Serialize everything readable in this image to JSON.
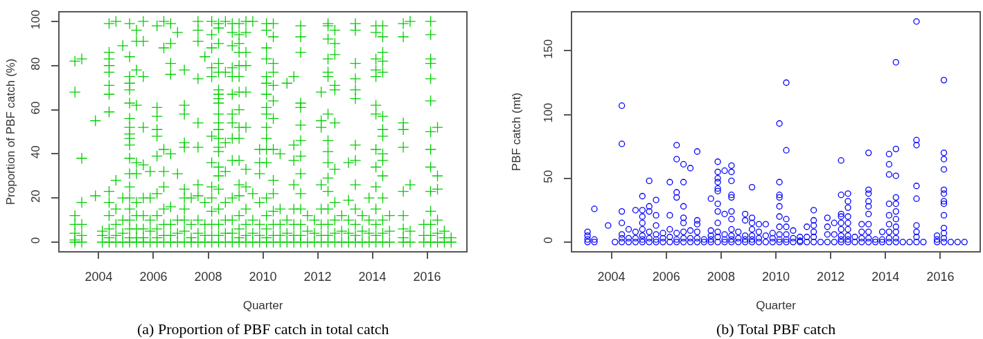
{
  "chart_data": [
    {
      "type": "scatter",
      "xlabel": "Quarter",
      "ylabel": "Proportion of PBF catch (%)",
      "annotations": [
        "(a) Proportion of PBF catch in total catch"
      ],
      "xlim": [
        2002.57,
        2017.43
      ],
      "xticks": [
        2004,
        2006,
        2008,
        2010,
        2012,
        2014,
        2016
      ],
      "ylim": [
        -4,
        104
      ],
      "yticks": [
        0,
        20,
        40,
        60,
        80,
        100
      ],
      "marker": "cross",
      "series": [
        {
          "color": "#00cd00",
          "x": [
            2003.13,
            2003.13,
            2003.13,
            2003.13,
            2003.13,
            2003.13,
            2003.13,
            2003.38,
            2003.38,
            2003.38,
            2003.38,
            2003.38,
            2003.38,
            2003.88,
            2003.88,
            2004.13,
            2004.13,
            2004.13,
            2004.38,
            2004.38,
            2004.38,
            2004.38,
            2004.38,
            2004.38,
            2004.38,
            2004.38,
            2004.38,
            2004.38,
            2004.38,
            2004.38,
            2004.38,
            2004.38,
            2004.63,
            2004.63,
            2004.63,
            2004.63,
            2004.63,
            2004.63,
            2004.88,
            2004.88,
            2004.88,
            2004.88,
            2004.88,
            2005.13,
            2005.13,
            2005.13,
            2005.13,
            2005.13,
            2005.13,
            2005.13,
            2005.13,
            2005.13,
            2005.13,
            2005.13,
            2005.13,
            2005.13,
            2005.13,
            2005.13,
            2005.13,
            2005.13,
            2005.13,
            2005.13,
            2005.13,
            2005.38,
            2005.38,
            2005.38,
            2005.38,
            2005.38,
            2005.38,
            2005.38,
            2005.38,
            2005.38,
            2005.38,
            2005.38,
            2005.63,
            2005.63,
            2005.63,
            2005.63,
            2005.63,
            2005.63,
            2005.63,
            2005.63,
            2005.63,
            2005.63,
            2005.88,
            2005.88,
            2005.88,
            2005.88,
            2005.88,
            2006.13,
            2006.13,
            2006.13,
            2006.13,
            2006.13,
            2006.13,
            2006.13,
            2006.13,
            2006.13,
            2006.13,
            2006.13,
            2006.38,
            2006.38,
            2006.38,
            2006.38,
            2006.38,
            2006.38,
            2006.38,
            2006.38,
            2006.38,
            2006.63,
            2006.63,
            2006.63,
            2006.63,
            2006.63,
            2006.63,
            2006.63,
            2006.63,
            2006.63,
            2006.88,
            2006.88,
            2006.88,
            2006.88,
            2006.88,
            2007.13,
            2007.13,
            2007.13,
            2007.13,
            2007.13,
            2007.13,
            2007.13,
            2007.13,
            2007.13,
            2007.13,
            2007.13,
            2007.38,
            2007.38,
            2007.38,
            2007.38,
            2007.63,
            2007.63,
            2007.63,
            2007.63,
            2007.63,
            2007.63,
            2007.63,
            2007.63,
            2007.63,
            2007.63,
            2007.63,
            2007.88,
            2007.88,
            2007.88,
            2007.88,
            2007.88,
            2008.13,
            2008.13,
            2008.13,
            2008.13,
            2008.13,
            2008.13,
            2008.13,
            2008.13,
            2008.13,
            2008.13,
            2008.13,
            2008.13,
            2008.13,
            2008.38,
            2008.38,
            2008.38,
            2008.38,
            2008.38,
            2008.38,
            2008.38,
            2008.38,
            2008.38,
            2008.38,
            2008.38,
            2008.38,
            2008.38,
            2008.38,
            2008.38,
            2008.38,
            2008.38,
            2008.38,
            2008.38,
            2008.38,
            2008.38,
            2008.38,
            2008.63,
            2008.63,
            2008.63,
            2008.63,
            2008.63,
            2008.63,
            2008.63,
            2008.63,
            2008.88,
            2008.88,
            2008.88,
            2008.88,
            2008.88,
            2008.88,
            2008.88,
            2008.88,
            2008.88,
            2008.88,
            2008.88,
            2008.88,
            2008.88,
            2008.88,
            2009.13,
            2009.13,
            2009.13,
            2009.13,
            2009.13,
            2009.13,
            2009.13,
            2009.13,
            2009.13,
            2009.13,
            2009.13,
            2009.13,
            2009.13,
            2009.13,
            2009.13,
            2009.13,
            2009.13,
            2009.38,
            2009.38,
            2009.38,
            2009.38,
            2009.38,
            2009.38,
            2009.38,
            2009.38,
            2009.38,
            2009.38,
            2009.38,
            2009.38,
            2009.63,
            2009.63,
            2009.63,
            2009.63,
            2009.63,
            2009.88,
            2009.88,
            2009.88,
            2009.88,
            2009.88,
            2009.88,
            2009.88,
            2010.13,
            2010.13,
            2010.13,
            2010.13,
            2010.13,
            2010.13,
            2010.13,
            2010.13,
            2010.13,
            2010.13,
            2010.13,
            2010.13,
            2010.13,
            2010.13,
            2010.13,
            2010.13,
            2010.13,
            2010.13,
            2010.38,
            2010.38,
            2010.38,
            2010.38,
            2010.38,
            2010.38,
            2010.38,
            2010.38,
            2010.38,
            2010.38,
            2010.38,
            2010.38,
            2010.38,
            2010.38,
            2010.63,
            2010.63,
            2010.63,
            2010.63,
            2010.63,
            2010.88,
            2010.88,
            2010.88,
            2010.88,
            2011.13,
            2011.13,
            2011.13,
            2011.13,
            2011.13,
            2011.13,
            2011.13,
            2011.13,
            2011.38,
            2011.38,
            2011.38,
            2011.38,
            2011.38,
            2011.38,
            2011.38,
            2011.38,
            2011.38,
            2011.38,
            2011.38,
            2011.38,
            2011.38,
            2011.38,
            2011.63,
            2011.63,
            2011.63,
            2011.88,
            2011.88,
            2011.88,
            2012.13,
            2012.13,
            2012.13,
            2012.13,
            2012.13,
            2012.13,
            2012.13,
            2012.13,
            2012.38,
            2012.38,
            2012.38,
            2012.38,
            2012.38,
            2012.38,
            2012.38,
            2012.38,
            2012.38,
            2012.38,
            2012.38,
            2012.38,
            2012.38,
            2012.38,
            2012.38,
            2012.38,
            2012.63,
            2012.63,
            2012.63,
            2012.63,
            2012.63,
            2012.63,
            2012.63,
            2012.63,
            2012.63,
            2012.63,
            2012.63,
            2012.88,
            2012.88,
            2012.88,
            2013.13,
            2013.13,
            2013.13,
            2013.13,
            2013.13,
            2013.38,
            2013.38,
            2013.38,
            2013.38,
            2013.38,
            2013.38,
            2013.38,
            2013.38,
            2013.38,
            2013.38,
            2013.38,
            2013.38,
            2013.38,
            2013.63,
            2013.63,
            2013.63,
            2013.88,
            2013.88,
            2013.88,
            2013.88,
            2014.13,
            2014.13,
            2014.13,
            2014.13,
            2014.13,
            2014.13,
            2014.13,
            2014.13,
            2014.13,
            2014.13,
            2014.13,
            2014.13,
            2014.13,
            2014.13,
            2014.38,
            2014.38,
            2014.38,
            2014.38,
            2014.38,
            2014.38,
            2014.38,
            2014.38,
            2014.38,
            2014.38,
            2014.38,
            2014.38,
            2014.38,
            2014.38,
            2014.38,
            2014.63,
            2014.63,
            2014.63,
            2015.13,
            2015.13,
            2015.13,
            2015.13,
            2015.13,
            2015.13,
            2015.13,
            2015.13,
            2015.13,
            2015.13,
            2015.38,
            2015.38,
            2015.38,
            2015.38,
            2015.88,
            2015.88,
            2015.88,
            2016.13,
            2016.13,
            2016.13,
            2016.13,
            2016.13,
            2016.13,
            2016.13,
            2016.13,
            2016.13,
            2016.13,
            2016.13,
            2016.13,
            2016.13,
            2016.13,
            2016.38,
            2016.38,
            2016.38,
            2016.38,
            2016.38,
            2016.38,
            2016.63,
            2016.63,
            2016.63,
            2016.88,
            2016.88
          ],
          "values": [
            82,
            68,
            12,
            8,
            4,
            1,
            0,
            83,
            38,
            18,
            8,
            3,
            0,
            55,
            21,
            5,
            3,
            0,
            99,
            86,
            83,
            80,
            77,
            71,
            67,
            59,
            23,
            18,
            12,
            6,
            2,
            0,
            100,
            28,
            15,
            8,
            3,
            0,
            89,
            20,
            10,
            4,
            0,
            99,
            84,
            75,
            72,
            69,
            63,
            56,
            52,
            49,
            47,
            44,
            38,
            31,
            25,
            20,
            15,
            10,
            6,
            2,
            0,
            96,
            91,
            78,
            62,
            36,
            31,
            18,
            12,
            6,
            2,
            0,
            100,
            91,
            75,
            52,
            35,
            20,
            12,
            6,
            2,
            0,
            32,
            20,
            10,
            5,
            0,
            98,
            61,
            57,
            51,
            48,
            39,
            22,
            12,
            6,
            2,
            0,
            100,
            88,
            42,
            32,
            25,
            15,
            8,
            3,
            0,
            99,
            90,
            81,
            76,
            40,
            16,
            8,
            3,
            0,
            95,
            31,
            10,
            4,
            0,
            78,
            62,
            58,
            45,
            43,
            24,
            20,
            15,
            10,
            5,
            0,
            20,
            8,
            2,
            0,
            100,
            96,
            91,
            74,
            54,
            43,
            26,
            21,
            10,
            4,
            0,
            84,
            18,
            8,
            3,
            0,
            100,
            94,
            88,
            79,
            75,
            48,
            36,
            25,
            20,
            14,
            8,
            3,
            0,
            99,
            97,
            90,
            81,
            77,
            69,
            67,
            65,
            63,
            58,
            54,
            51,
            47,
            43,
            41,
            34,
            30,
            24,
            15,
            8,
            3,
            0,
            100,
            77,
            45,
            32,
            18,
            10,
            4,
            0,
            99,
            95,
            89,
            79,
            75,
            67,
            58,
            54,
            47,
            37,
            20,
            10,
            4,
            0,
            99,
            94,
            90,
            86,
            80,
            75,
            68,
            60,
            52,
            47,
            37,
            26,
            21,
            12,
            6,
            2,
            0,
            100,
            95,
            86,
            80,
            68,
            52,
            33,
            25,
            15,
            8,
            3,
            0,
            100,
            22,
            10,
            4,
            0,
            42,
            36,
            31,
            18,
            8,
            3,
            0,
            99,
            96,
            88,
            83,
            75,
            72,
            67,
            61,
            58,
            52,
            47,
            42,
            36,
            20,
            12,
            6,
            2,
            0,
            99,
            93,
            81,
            77,
            71,
            64,
            56,
            42,
            28,
            22,
            14,
            8,
            3,
            0,
            40,
            15,
            8,
            3,
            0,
            72,
            10,
            4,
            0,
            75,
            44,
            37,
            26,
            15,
            8,
            3,
            0,
            98,
            93,
            86,
            63,
            61,
            53,
            46,
            39,
            31,
            22,
            15,
            8,
            3,
            0,
            12,
            5,
            0,
            10,
            4,
            0,
            68,
            55,
            52,
            26,
            15,
            8,
            3,
            0,
            99,
            98,
            92,
            83,
            77,
            75,
            58,
            46,
            41,
            36,
            29,
            23,
            15,
            8,
            3,
            0,
            96,
            90,
            85,
            71,
            69,
            54,
            33,
            18,
            10,
            4,
            0,
            12,
            5,
            0,
            36,
            19,
            10,
            4,
            0,
            99,
            96,
            81,
            74,
            69,
            65,
            44,
            37,
            26,
            15,
            8,
            3,
            0,
            12,
            5,
            0,
            20,
            10,
            4,
            0,
            98,
            95,
            83,
            78,
            75,
            62,
            58,
            42,
            34,
            25,
            15,
            8,
            3,
            0,
            98,
            93,
            86,
            82,
            77,
            57,
            51,
            48,
            40,
            37,
            30,
            20,
            10,
            4,
            0,
            12,
            5,
            0,
            99,
            93,
            54,
            51,
            43,
            23,
            12,
            6,
            2,
            0,
            100,
            26,
            5,
            0,
            8,
            3,
            0,
            100,
            94,
            83,
            81,
            74,
            64,
            50,
            42,
            34,
            23,
            14,
            8,
            3,
            0,
            52,
            30,
            24,
            10,
            4,
            0,
            5,
            2,
            0,
            2,
            0
          ]
        }
      ]
    },
    {
      "type": "scatter",
      "xlabel": "Quarter",
      "ylabel": "PBF catch (mt)",
      "annotations": [
        "(b) Total PBF catch"
      ],
      "xlim": [
        2002.57,
        2017.43
      ],
      "xticks": [
        2004,
        2006,
        2008,
        2010,
        2012,
        2014,
        2016
      ],
      "ylim": [
        -7,
        180
      ],
      "yticks": [
        0,
        50,
        100,
        150
      ],
      "marker": "circle",
      "series": [
        {
          "color": "#0000ff",
          "x": [
            2003.13,
            2003.13,
            2003.13,
            2003.13,
            2003.38,
            2003.38,
            2003.38,
            2003.88,
            2004.13,
            2004.38,
            2004.38,
            2004.38,
            2004.38,
            2004.38,
            2004.38,
            2004.38,
            2004.63,
            2004.63,
            2004.63,
            2004.88,
            2004.88,
            2004.88,
            2004.88,
            2005.13,
            2005.13,
            2005.13,
            2005.13,
            2005.13,
            2005.13,
            2005.13,
            2005.13,
            2005.38,
            2005.38,
            2005.38,
            2005.38,
            2005.38,
            2005.38,
            2005.63,
            2005.63,
            2005.63,
            2005.63,
            2005.63,
            2005.63,
            2005.88,
            2005.88,
            2005.88,
            2006.13,
            2006.13,
            2006.13,
            2006.13,
            2006.13,
            2006.38,
            2006.38,
            2006.38,
            2006.38,
            2006.38,
            2006.38,
            2006.38,
            2006.63,
            2006.63,
            2006.63,
            2006.63,
            2006.63,
            2006.63,
            2006.63,
            2006.63,
            2006.88,
            2006.88,
            2006.88,
            2006.88,
            2007.13,
            2007.13,
            2007.13,
            2007.13,
            2007.13,
            2007.13,
            2007.38,
            2007.38,
            2007.63,
            2007.63,
            2007.63,
            2007.63,
            2007.63,
            2007.88,
            2007.88,
            2007.88,
            2007.88,
            2007.88,
            2007.88,
            2007.88,
            2007.88,
            2007.88,
            2007.88,
            2007.88,
            2007.88,
            2008.13,
            2008.13,
            2008.13,
            2008.13,
            2008.13,
            2008.38,
            2008.38,
            2008.38,
            2008.38,
            2008.38,
            2008.38,
            2008.38,
            2008.38,
            2008.38,
            2008.38,
            2008.38,
            2008.63,
            2008.63,
            2008.63,
            2008.88,
            2008.88,
            2008.88,
            2008.88,
            2008.88,
            2009.13,
            2009.13,
            2009.13,
            2009.13,
            2009.13,
            2009.13,
            2009.13,
            2009.38,
            2009.38,
            2009.38,
            2009.38,
            2009.63,
            2009.63,
            2009.63,
            2009.88,
            2009.88,
            2009.88,
            2010.13,
            2010.13,
            2010.13,
            2010.13,
            2010.13,
            2010.13,
            2010.13,
            2010.13,
            2010.13,
            2010.13,
            2010.38,
            2010.38,
            2010.38,
            2010.38,
            2010.38,
            2010.38,
            2010.38,
            2010.63,
            2010.63,
            2010.63,
            2010.88,
            2010.88,
            2010.88,
            2011.13,
            2011.13,
            2011.13,
            2011.38,
            2011.38,
            2011.38,
            2011.38,
            2011.38,
            2011.38,
            2011.63,
            2011.88,
            2011.88,
            2011.88,
            2011.88,
            2012.13,
            2012.13,
            2012.13,
            2012.38,
            2012.38,
            2012.38,
            2012.38,
            2012.38,
            2012.38,
            2012.38,
            2012.38,
            2012.38,
            2012.63,
            2012.63,
            2012.63,
            2012.63,
            2012.63,
            2012.63,
            2012.63,
            2012.63,
            2012.63,
            2012.88,
            2012.88,
            2013.13,
            2013.13,
            2013.13,
            2013.13,
            2013.38,
            2013.38,
            2013.38,
            2013.38,
            2013.38,
            2013.38,
            2013.38,
            2013.38,
            2013.38,
            2013.38,
            2013.63,
            2013.63,
            2013.88,
            2013.88,
            2013.88,
            2014.13,
            2014.13,
            2014.13,
            2014.13,
            2014.13,
            2014.13,
            2014.13,
            2014.13,
            2014.13,
            2014.38,
            2014.38,
            2014.38,
            2014.38,
            2014.38,
            2014.38,
            2014.38,
            2014.38,
            2014.38,
            2014.38,
            2014.38,
            2014.63,
            2014.88,
            2015.13,
            2015.13,
            2015.13,
            2015.13,
            2015.13,
            2015.13,
            2015.13,
            2015.13,
            2015.13,
            2015.38,
            2015.88,
            2015.88,
            2015.88,
            2016.13,
            2016.13,
            2016.13,
            2016.13,
            2016.13,
            2016.13,
            2016.13,
            2016.13,
            2016.13,
            2016.13,
            2016.13,
            2016.13,
            2016.13,
            2016.38,
            2016.63,
            2016.88
          ],
          "values": [
            8,
            5,
            2,
            0,
            26,
            2,
            0,
            13,
            0,
            107,
            77,
            24,
            15,
            6,
            3,
            0,
            10,
            3,
            0,
            25,
            8,
            3,
            0,
            36,
            25,
            20,
            15,
            10,
            5,
            2,
            0,
            48,
            28,
            24,
            8,
            3,
            0,
            33,
            21,
            13,
            6,
            2,
            0,
            7,
            3,
            0,
            47,
            21,
            10,
            4,
            0,
            76,
            65,
            39,
            35,
            7,
            2,
            0,
            61,
            47,
            28,
            19,
            15,
            8,
            3,
            0,
            58,
            9,
            3,
            0,
            71,
            17,
            14,
            8,
            3,
            0,
            2,
            0,
            34,
            9,
            5,
            2,
            0,
            63,
            55,
            50,
            47,
            42,
            40,
            30,
            24,
            15,
            8,
            4,
            0,
            56,
            22,
            6,
            2,
            0,
            60,
            55,
            48,
            37,
            35,
            24,
            18,
            10,
            5,
            2,
            0,
            8,
            3,
            0,
            22,
            17,
            5,
            2,
            0,
            43,
            19,
            15,
            10,
            5,
            2,
            0,
            14,
            8,
            3,
            0,
            14,
            5,
            0,
            7,
            3,
            0,
            93,
            47,
            37,
            35,
            28,
            20,
            12,
            6,
            2,
            0,
            125,
            72,
            18,
            12,
            6,
            2,
            0,
            9,
            3,
            0,
            4,
            1,
            0,
            12,
            4,
            0,
            25,
            17,
            13,
            8,
            4,
            0,
            0,
            19,
            12,
            6,
            0,
            15,
            6,
            0,
            64,
            37,
            22,
            20,
            15,
            10,
            5,
            2,
            0,
            38,
            32,
            27,
            20,
            15,
            10,
            5,
            2,
            0,
            4,
            0,
            14,
            8,
            3,
            0,
            70,
            41,
            38,
            32,
            28,
            22,
            14,
            8,
            3,
            0,
            2,
            0,
            8,
            2,
            0,
            69,
            61,
            53,
            30,
            21,
            14,
            8,
            3,
            0,
            141,
            73,
            52,
            35,
            30,
            24,
            18,
            12,
            8,
            3,
            0,
            0,
            0,
            173,
            80,
            76,
            44,
            34,
            13,
            8,
            4,
            0,
            0,
            5,
            2,
            0,
            127,
            70,
            65,
            57,
            41,
            38,
            32,
            30,
            21,
            11,
            7,
            3,
            0,
            0,
            0,
            0
          ]
        }
      ]
    }
  ]
}
